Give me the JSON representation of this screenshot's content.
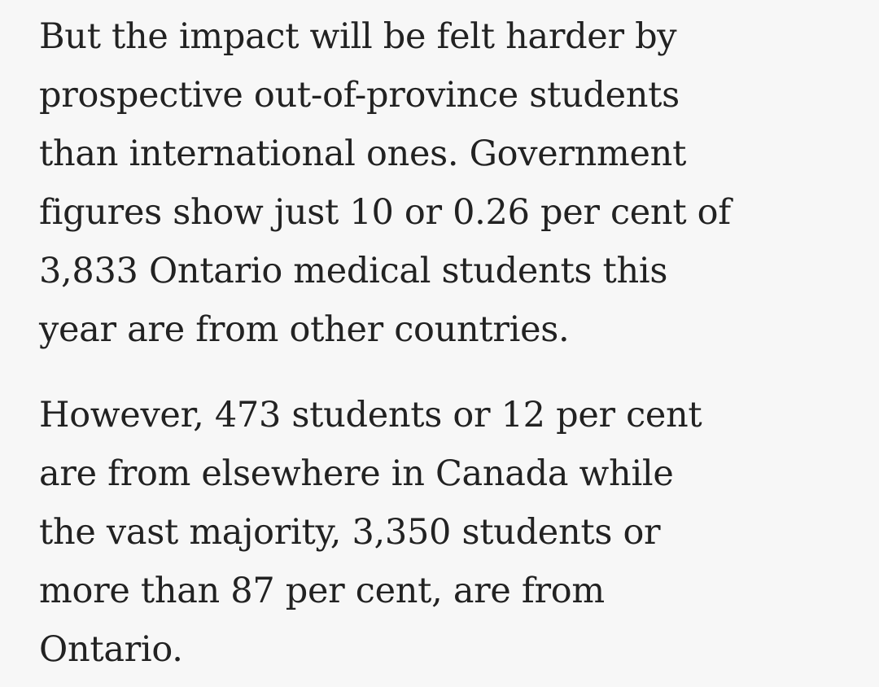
{
  "paragraphs": [
    {
      "lines": [
        "But the impact will be felt harder by",
        "prospective out-of-province students",
        "than international ones. Government",
        "figures show just 10 or 0.26 per cent of",
        "3,833 Ontario medical students this",
        "year are from other countries."
      ]
    },
    {
      "lines": [
        "However, 473 students or 12 per cent",
        "are from elsewhere in Canada while",
        "the vast majority, 3,350 students or",
        "more than 87 per cent, are from",
        "Ontario."
      ]
    }
  ]
}
